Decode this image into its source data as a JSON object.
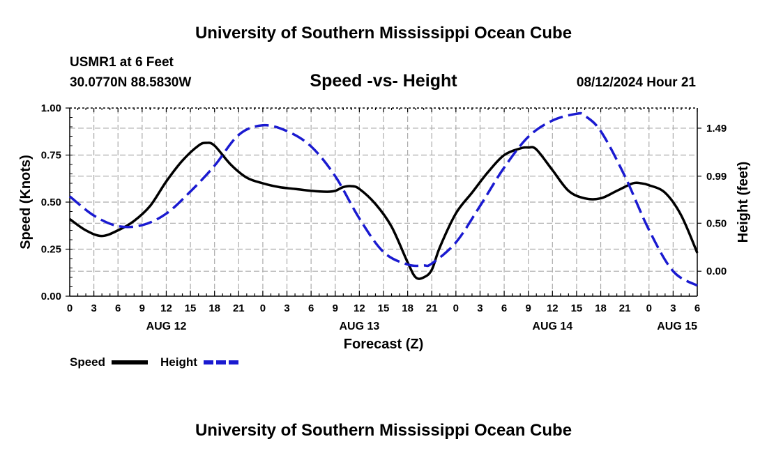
{
  "header": {
    "title": "University of Southern Mississippi Ocean Cube",
    "station": "USMR1 at 6 Feet",
    "coords": "30.0770N  88.5830W",
    "chart_title": "Speed -vs- Height",
    "issued": "08/12/2024 Hour 21"
  },
  "footer": {
    "title": "University of Southern Mississippi Ocean Cube"
  },
  "colors": {
    "speed": "#000000",
    "height": "#1a1ad0",
    "grid": "#aaaaaa"
  },
  "chart_data": {
    "type": "line",
    "title": "Speed -vs- Height",
    "xlabel": "Forecast (Z)",
    "ylabel": "Speed (Knots)",
    "y2label": "Height (feet)",
    "x_range_hours": [
      0,
      78
    ],
    "x_ticks": [
      {
        "h": 0,
        "label": "0"
      },
      {
        "h": 3,
        "label": "3"
      },
      {
        "h": 6,
        "label": "6"
      },
      {
        "h": 9,
        "label": "9"
      },
      {
        "h": 12,
        "label": "12"
      },
      {
        "h": 15,
        "label": "15"
      },
      {
        "h": 18,
        "label": "18"
      },
      {
        "h": 21,
        "label": "21"
      },
      {
        "h": 24,
        "label": "0"
      },
      {
        "h": 27,
        "label": "3"
      },
      {
        "h": 30,
        "label": "6"
      },
      {
        "h": 33,
        "label": "9"
      },
      {
        "h": 36,
        "label": "12"
      },
      {
        "h": 39,
        "label": "15"
      },
      {
        "h": 42,
        "label": "18"
      },
      {
        "h": 45,
        "label": "21"
      },
      {
        "h": 48,
        "label": "0"
      },
      {
        "h": 51,
        "label": "3"
      },
      {
        "h": 54,
        "label": "6"
      },
      {
        "h": 57,
        "label": "9"
      },
      {
        "h": 60,
        "label": "12"
      },
      {
        "h": 63,
        "label": "15"
      },
      {
        "h": 66,
        "label": "18"
      },
      {
        "h": 69,
        "label": "21"
      },
      {
        "h": 72,
        "label": "0"
      },
      {
        "h": 75,
        "label": "3"
      },
      {
        "h": 78,
        "label": "6"
      }
    ],
    "day_labels": [
      {
        "h": 12,
        "label": "AUG 12"
      },
      {
        "h": 36,
        "label": "AUG 13"
      },
      {
        "h": 60,
        "label": "AUG 14"
      },
      {
        "h": 78,
        "label": "AUG 15"
      }
    ],
    "y_left": {
      "range": [
        0,
        1
      ],
      "ticks": [
        {
          "v": 0,
          "label": "0.00"
        },
        {
          "v": 0.25,
          "label": "0.25"
        },
        {
          "v": 0.5,
          "label": "0.50"
        },
        {
          "v": 0.75,
          "label": "0.75"
        },
        {
          "v": 1.0,
          "label": "1.00"
        }
      ]
    },
    "y_right": {
      "range": [
        -0.26,
        1.7
      ],
      "ticks": [
        {
          "v": 0.0,
          "label": "0.00"
        },
        {
          "v": 0.5,
          "label": "0.50"
        },
        {
          "v": 0.99,
          "label": "0.99"
        },
        {
          "v": 1.49,
          "label": "1.49"
        }
      ]
    },
    "legend": [
      {
        "name": "Speed",
        "style": "solid"
      },
      {
        "name": "Height",
        "style": "dashed"
      }
    ],
    "series": [
      {
        "name": "Speed",
        "axis": "left",
        "style": "solid",
        "x": [
          0,
          2,
          4,
          6,
          8,
          10,
          12,
          14,
          16,
          17,
          18,
          20,
          22,
          24,
          26,
          28,
          30,
          32,
          33,
          34,
          35,
          36,
          38,
          40,
          42,
          43,
          44,
          45,
          46,
          48,
          50,
          52,
          54,
          56,
          57,
          58,
          60,
          62,
          64,
          66,
          68,
          70,
          71,
          72,
          74,
          76,
          78
        ],
        "values": [
          0.41,
          0.35,
          0.32,
          0.35,
          0.4,
          0.48,
          0.61,
          0.72,
          0.8,
          0.815,
          0.8,
          0.7,
          0.63,
          0.6,
          0.58,
          0.57,
          0.56,
          0.555,
          0.56,
          0.58,
          0.585,
          0.57,
          0.49,
          0.37,
          0.18,
          0.1,
          0.1,
          0.14,
          0.26,
          0.44,
          0.55,
          0.66,
          0.75,
          0.785,
          0.79,
          0.78,
          0.67,
          0.56,
          0.52,
          0.52,
          0.56,
          0.6,
          0.6,
          0.59,
          0.55,
          0.43,
          0.23
        ]
      },
      {
        "name": "Height",
        "axis": "right",
        "style": "dashed",
        "x": [
          0,
          3,
          6,
          9,
          12,
          15,
          18,
          21,
          24,
          27,
          30,
          33,
          36,
          39,
          42,
          44,
          45,
          48,
          51,
          54,
          57,
          60,
          63,
          64,
          66,
          69,
          72,
          75,
          78
        ],
        "values": [
          0.78,
          0.58,
          0.47,
          0.48,
          0.6,
          0.83,
          1.1,
          1.42,
          1.52,
          1.46,
          1.3,
          0.99,
          0.55,
          0.2,
          0.07,
          0.06,
          0.08,
          0.3,
          0.68,
          1.08,
          1.4,
          1.57,
          1.64,
          1.62,
          1.46,
          0.99,
          0.43,
          0.0,
          -0.15
        ]
      }
    ]
  }
}
